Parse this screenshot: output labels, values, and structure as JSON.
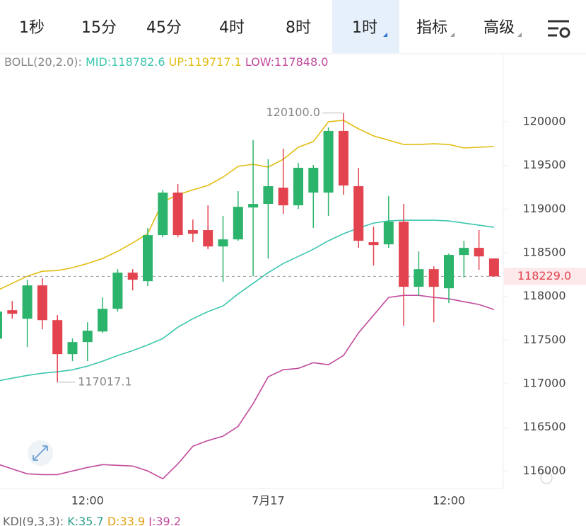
{
  "tabs": [
    "1秒",
    "15分",
    "45分",
    "4时",
    "8时",
    "1时",
    "指标",
    "高级"
  ],
  "selected_tab": 5,
  "chart_data": {
    "type": "candlestick",
    "indicator_title": "BOLL(20,2.0):",
    "indicator_values": [
      "MID:118782.6",
      "UP:119717.1",
      "LOW:117848.0"
    ],
    "categories": [
      null,
      null,
      null,
      null,
      null,
      null,
      "12:00",
      null,
      null,
      null,
      null,
      null,
      null,
      null,
      null,
      null,
      null,
      null,
      "7月17",
      null,
      null,
      null,
      null,
      null,
      null,
      null,
      null,
      null,
      null,
      null,
      "12:00",
      null,
      null,
      null
    ],
    "open": [
      117517,
      117842,
      117744,
      118126,
      117728,
      117339,
      117477,
      117598,
      117858,
      118272,
      118174,
      118702,
      119189,
      118759,
      118759,
      118572,
      118653,
      119018,
      119059,
      119245,
      119043,
      119189,
      119189,
      119895,
      119262,
      118621,
      118596,
      118856,
      118110,
      118312,
      118093,
      118475,
      118556,
      118434
    ],
    "high": [
      117907,
      117947,
      118191,
      118207,
      117785,
      117517,
      117704,
      117988,
      118312,
      118312,
      118783,
      119221,
      119286,
      118880,
      119043,
      118921,
      119205,
      119789,
      119570,
      119692,
      119529,
      119505,
      119935,
      120100,
      119473,
      118799,
      119148,
      119059,
      118515,
      118345,
      118491,
      118637,
      118759,
      118434
    ],
    "low": [
      117460,
      117744,
      117420,
      117623,
      117017.1,
      117258,
      117258,
      117582,
      117826,
      118069,
      118118,
      118677,
      118677,
      118621,
      118540,
      118166,
      118637,
      118231,
      118434,
      118945,
      119002,
      118783,
      118921,
      119164,
      118556,
      118353,
      118556,
      117663,
      118004,
      117704,
      117923,
      118215,
      118304,
      118229
    ],
    "close": [
      117826,
      117801,
      118126,
      117728,
      117339,
      117477,
      117607,
      117858,
      118272,
      118191,
      118702,
      119189,
      118702,
      118718,
      118572,
      118653,
      119026,
      119059,
      119262,
      119043,
      119473,
      119473,
      119895,
      119270,
      118637,
      118588,
      118856,
      118110,
      118312,
      118110,
      118475,
      118556,
      118458,
      118229
    ],
    "series": [
      {
        "name": "UP",
        "color": "#e3bd12",
        "values": [
          118069,
          118150,
          118231,
          118288,
          118296,
          118329,
          118377,
          118434,
          118515,
          118613,
          118718,
          119083,
          119164,
          119221,
          119270,
          119367,
          119489,
          119513,
          119481,
          119570,
          119708,
          119773,
          120000,
          120016,
          119919,
          119838,
          119789,
          119740,
          119740,
          119748,
          119740,
          119700,
          119708,
          119716
        ]
      },
      {
        "name": "MID",
        "color": "#3cc6ae",
        "values": [
          117030,
          117063,
          117095,
          117120,
          117136,
          117160,
          117201,
          117258,
          117323,
          117379,
          117444,
          117517,
          117647,
          117744,
          117826,
          117890,
          118028,
          118150,
          118272,
          118377,
          118458,
          118540,
          118637,
          118718,
          118783,
          118840,
          118864,
          118872,
          118872,
          118872,
          118864,
          118840,
          118815,
          118791
        ]
      },
      {
        "name": "LOW",
        "color": "#c14a9c",
        "values": [
          116081,
          116024,
          115968,
          115959,
          115959,
          116000,
          116041,
          116073,
          116065,
          116057,
          116000,
          115911,
          116081,
          116284,
          116349,
          116398,
          116511,
          116771,
          117079,
          117160,
          117176,
          117241,
          117217,
          117323,
          117582,
          117785,
          117988,
          118012,
          118012,
          117988,
          117972,
          117939,
          117907,
          117850
        ]
      }
    ],
    "up_color": "#2db46c",
    "down_color": "#e2434f",
    "ylim": [
      115800,
      120600
    ],
    "yticks": [
      116000,
      116500,
      117000,
      117500,
      118000,
      118500,
      119000,
      119500,
      120000
    ],
    "max_label": "120100.0",
    "min_label": "117017.1",
    "last_label": "118229.0"
  },
  "sub_indicator": {
    "title": "KDJ(9,3,3):",
    "values": [
      "K:35.7",
      "D:33.9",
      "J:39.2"
    ]
  }
}
